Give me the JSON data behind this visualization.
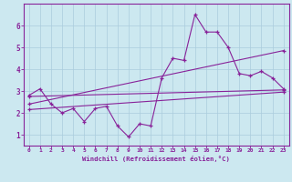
{
  "background_color": "#cce8f0",
  "line_color": "#882299",
  "grid_color": "#aaccdd",
  "xlabel": "Windchill (Refroidissement éolien,°C)",
  "xlim": [
    -0.5,
    23.5
  ],
  "ylim": [
    0.5,
    7.0
  ],
  "xticks": [
    0,
    1,
    2,
    3,
    4,
    5,
    6,
    7,
    8,
    9,
    10,
    11,
    12,
    13,
    14,
    15,
    16,
    17,
    18,
    19,
    20,
    21,
    22,
    23
  ],
  "yticks": [
    1,
    2,
    3,
    4,
    5,
    6
  ],
  "series1_x": [
    0,
    1,
    2,
    3,
    4,
    5,
    6,
    7,
    8,
    9,
    10,
    11,
    12,
    13,
    14,
    15,
    16,
    17,
    18,
    19,
    20,
    21,
    22,
    23
  ],
  "series1_y": [
    2.8,
    3.1,
    2.4,
    2.0,
    2.2,
    1.6,
    2.2,
    2.3,
    1.4,
    0.9,
    1.5,
    1.4,
    3.6,
    4.5,
    4.4,
    6.5,
    5.7,
    5.7,
    5.0,
    3.8,
    3.7,
    3.9,
    3.6,
    3.1
  ],
  "series2_x": [
    0,
    23
  ],
  "series2_y": [
    2.75,
    3.05
  ],
  "series3_x": [
    0,
    23
  ],
  "series3_y": [
    2.4,
    4.85
  ],
  "series4_x": [
    0,
    23
  ],
  "series4_y": [
    2.15,
    2.95
  ]
}
